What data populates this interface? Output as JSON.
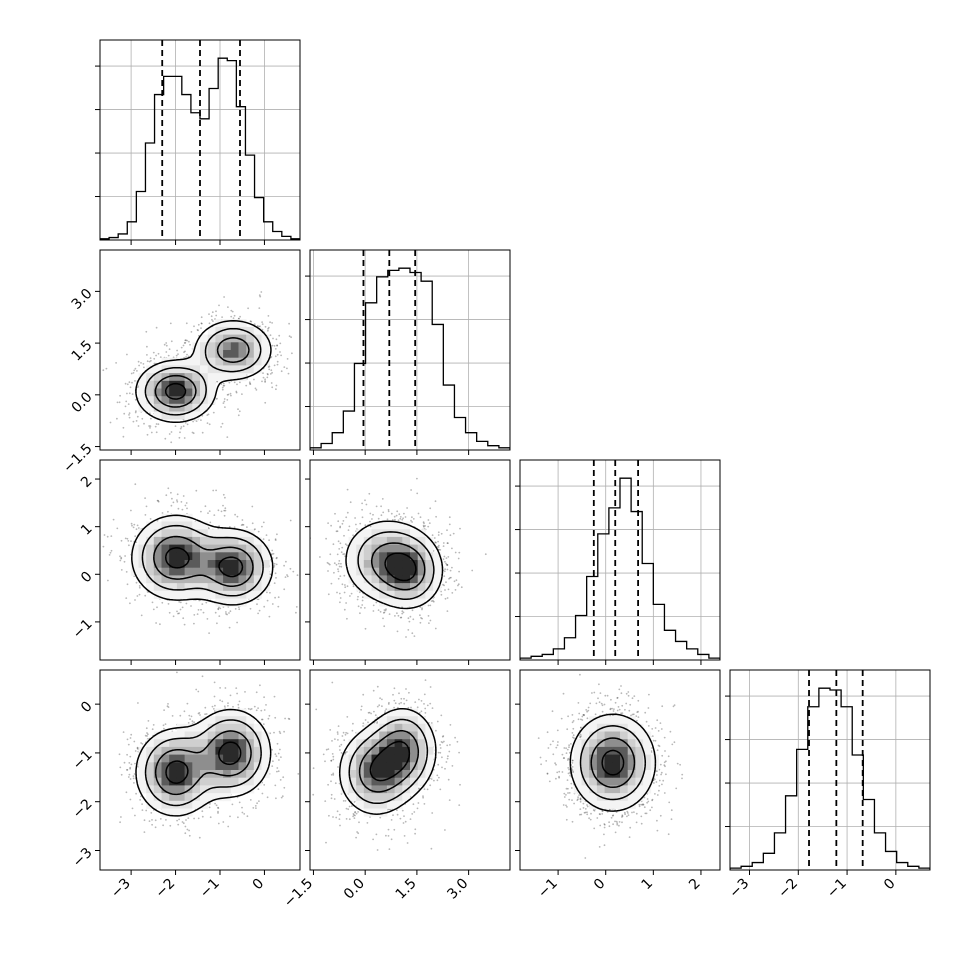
{
  "chart_data": {
    "type": "corner",
    "params": [
      {
        "range": [
          -3.7,
          0.8
        ],
        "ticks": [
          -3,
          -2,
          -1,
          0
        ],
        "tick_labels": [
          "−3",
          "−2",
          "−1",
          "0"
        ],
        "quantiles": [
          -2.3,
          -1.45,
          -0.55
        ],
        "grid": true
      },
      {
        "range": [
          -1.6,
          4.2
        ],
        "ticks": [
          -1.5,
          0.0,
          1.5,
          3.0
        ],
        "tick_labels": [
          "−1.5",
          "0.0",
          "1.5",
          "3.0"
        ],
        "quantiles": [
          -0.05,
          0.7,
          1.45
        ],
        "grid": true
      },
      {
        "range": [
          -1.8,
          2.4
        ],
        "ticks": [
          -1,
          0,
          1,
          2
        ],
        "tick_labels": [
          "−1",
          "0",
          "1",
          "2"
        ],
        "quantiles": [
          -0.25,
          0.2,
          0.68
        ],
        "grid": true
      },
      {
        "range": [
          -3.4,
          0.7
        ],
        "ticks": [
          -3,
          -2,
          -1,
          0
        ],
        "tick_labels": [
          "−3",
          "−2",
          "−1",
          "0"
        ],
        "quantiles": [
          -1.78,
          -1.22,
          -0.68
        ],
        "grid": true
      }
    ],
    "histograms": [
      {
        "param": 0,
        "counts": [
          1,
          2,
          5,
          15,
          40,
          80,
          120,
          135,
          135,
          120,
          105,
          100,
          125,
          150,
          148,
          110,
          70,
          35,
          15,
          7,
          3,
          1
        ],
        "bins": [
          -3.7,
          0.8
        ]
      },
      {
        "param": 1,
        "counts": [
          1,
          3,
          8,
          18,
          40,
          68,
          80,
          83,
          84,
          82,
          78,
          58,
          30,
          15,
          8,
          4,
          2,
          1
        ],
        "bins": [
          -1.6,
          4.2
        ]
      },
      {
        "param": 2,
        "counts": [
          1,
          2,
          3,
          6,
          12,
          24,
          45,
          68,
          82,
          98,
          80,
          52,
          30,
          16,
          10,
          6,
          3,
          1
        ],
        "bins": [
          -1.8,
          2.4
        ]
      },
      {
        "param": 3,
        "counts": [
          1,
          2,
          4,
          9,
          20,
          40,
          65,
          88,
          98,
          97,
          88,
          62,
          38,
          20,
          10,
          4,
          2,
          1
        ],
        "bins": [
          -3.4,
          0.7
        ]
      }
    ],
    "joint_2d": [
      {
        "x": 0,
        "y": 1,
        "modes": [
          {
            "mx": -2.0,
            "my": 0.1,
            "sx": 0.45,
            "sy": 0.45,
            "w": 0.55
          },
          {
            "mx": -0.7,
            "my": 1.3,
            "sx": 0.45,
            "sy": 0.45,
            "w": 0.45
          }
        ]
      },
      {
        "x": 0,
        "y": 2,
        "modes": [
          {
            "mx": -2.0,
            "my": 0.35,
            "sx": 0.5,
            "sy": 0.45,
            "w": 0.5
          },
          {
            "mx": -0.7,
            "my": 0.15,
            "sx": 0.45,
            "sy": 0.4,
            "w": 0.5
          }
        ]
      },
      {
        "x": 1,
        "y": 2,
        "modes": [
          {
            "mx": 0.6,
            "my": 0.3,
            "sx": 0.65,
            "sy": 0.45,
            "w": 0.5
          },
          {
            "mx": 1.3,
            "my": 0.05,
            "sx": 0.5,
            "sy": 0.4,
            "w": 0.5
          }
        ]
      },
      {
        "x": 0,
        "y": 3,
        "modes": [
          {
            "mx": -2.0,
            "my": -1.4,
            "sx": 0.45,
            "sy": 0.45,
            "w": 0.5
          },
          {
            "mx": -0.75,
            "my": -1.0,
            "sx": 0.45,
            "sy": 0.45,
            "w": 0.5
          }
        ]
      },
      {
        "x": 1,
        "y": 3,
        "modes": [
          {
            "mx": 0.3,
            "my": -1.4,
            "sx": 0.55,
            "sy": 0.45,
            "w": 0.5
          },
          {
            "mx": 1.1,
            "my": -0.95,
            "sx": 0.5,
            "sy": 0.45,
            "w": 0.5
          }
        ]
      },
      {
        "x": 2,
        "y": 3,
        "modes": [
          {
            "mx": 0.15,
            "my": -1.2,
            "sx": 0.45,
            "sy": 0.5,
            "w": 1.0
          }
        ]
      }
    ],
    "grid": true,
    "title": "",
    "xlabel": "",
    "ylabel": ""
  }
}
